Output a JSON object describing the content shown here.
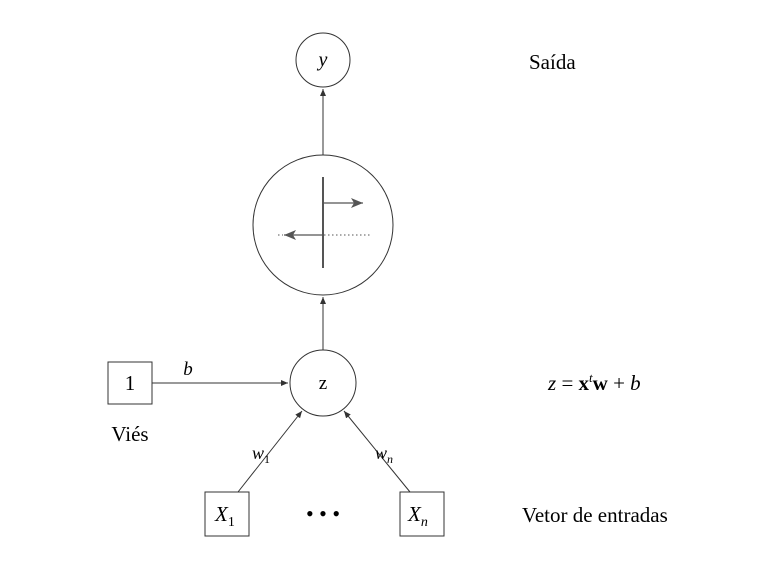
{
  "nodes": {
    "output": {
      "label": "y"
    },
    "sum": {
      "label": "z"
    },
    "bias": {
      "label": "1",
      "caption": "Viés"
    },
    "input_first": {
      "label": "X",
      "sub": "1"
    },
    "input_last": {
      "label": "X",
      "sub": "n"
    },
    "ellipsis": "• • •"
  },
  "edges": {
    "bias_weight": "b",
    "w_first": {
      "label": "w",
      "sub": "1"
    },
    "w_last": {
      "label": "w",
      "sub": "n"
    }
  },
  "annotations": {
    "output_label": "Saída",
    "inputs_label": "Vetor de entradas",
    "equation": {
      "z": "z",
      "eq": " = ",
      "x": "x",
      "t": "t",
      "w": "w",
      "plus": " + ",
      "b": "b"
    }
  },
  "colors": {
    "line": "#333333",
    "activation": "#555555"
  }
}
